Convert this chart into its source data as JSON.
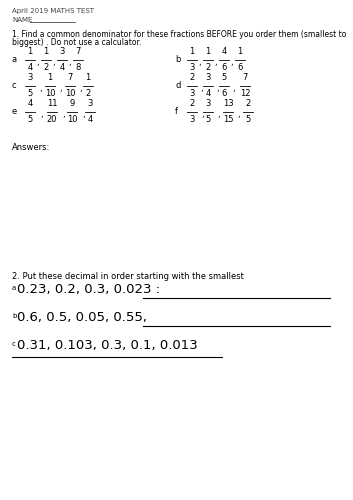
{
  "bg_color": "#ffffff",
  "header": "April 2019 MATHS TEST",
  "name_label": "NAME",
  "q1_text1": "1. Find a common denominator for these fractions BEFORE you order them (smallest to",
  "q1_text2": "biggest) . Do not use a calculator.",
  "fractions": {
    "a_nums": [
      "1",
      "1",
      "3",
      "7"
    ],
    "a_dens": [
      "4",
      "2",
      "4",
      "8"
    ],
    "b_nums": [
      "1",
      "1",
      "4",
      "1"
    ],
    "b_dens": [
      "3",
      "2",
      "6",
      "6"
    ],
    "c_nums": [
      "3",
      "1",
      "7",
      "1"
    ],
    "c_dens": [
      "5",
      "10",
      "10",
      "2"
    ],
    "d_nums": [
      "2",
      "3",
      "5",
      "7"
    ],
    "d_dens": [
      "3",
      "4",
      "6",
      "12"
    ],
    "e_nums": [
      "4",
      "11",
      "9",
      "3"
    ],
    "e_dens": [
      "5",
      "20",
      "10",
      "4"
    ],
    "f_nums": [
      "2",
      "3",
      "13",
      "2"
    ],
    "f_dens": [
      "3",
      "5",
      "15",
      "5"
    ]
  },
  "answers_label": "Answers:",
  "q2_text": "2. Put these decimal in order starting with the smallest",
  "q2a_text": "0.23, 0.2, 0.3, 0.023 :",
  "q2b_text": "0.6, 0.5, 0.05, 0.55,",
  "q2c_text": "0.31, 0.103, 0.3, 0.1, 0.013"
}
